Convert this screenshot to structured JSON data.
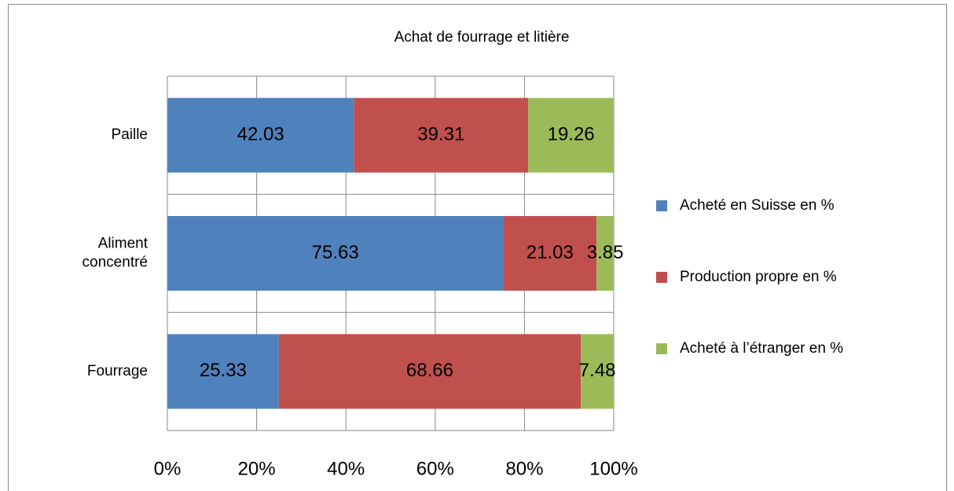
{
  "chart_data": {
    "type": "bar",
    "orientation": "horizontal",
    "stacking": "percent",
    "title": "Achat de fourrage et litière",
    "categories": [
      "Paille",
      "Aliment concentré",
      "Fourrage"
    ],
    "series": [
      {
        "name": "Acheté en Suisse en %",
        "color": "#4f81bd",
        "values": [
          42.03,
          75.63,
          25.33
        ]
      },
      {
        "name": "Production propre en %",
        "color": "#c0504d",
        "values": [
          39.31,
          21.03,
          68.66
        ]
      },
      {
        "name": "Acheté à l’étranger en %",
        "color": "#9bbb59",
        "values": [
          19.26,
          3.85,
          7.48
        ]
      }
    ],
    "xlim": [
      0,
      100
    ],
    "xticks": [
      {
        "value": 0,
        "label": "0%"
      },
      {
        "value": 20,
        "label": "20%"
      },
      {
        "value": 40,
        "label": "40%"
      },
      {
        "value": 60,
        "label": "60%"
      },
      {
        "value": 80,
        "label": "80%"
      },
      {
        "value": 100,
        "label": "100%"
      }
    ],
    "grid": true,
    "legend": "right"
  }
}
